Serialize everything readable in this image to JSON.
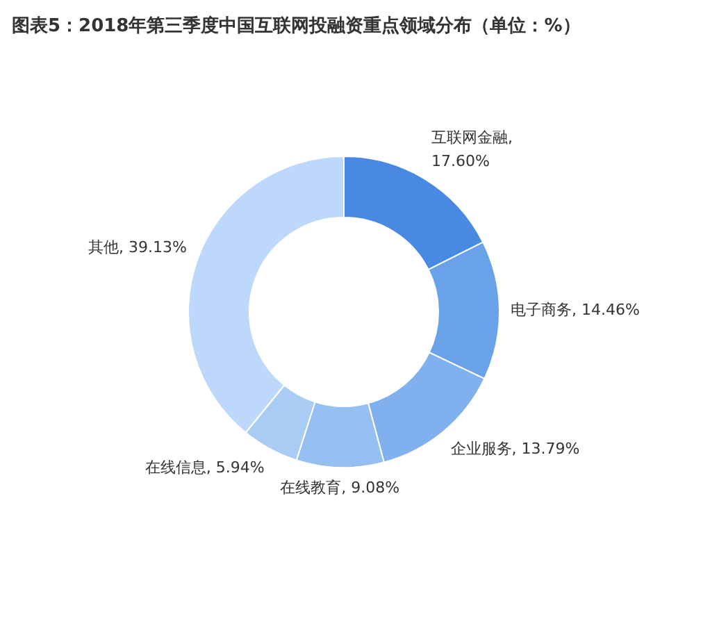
{
  "chart_data": {
    "type": "donut",
    "title": "图表5：2018年第三季度中国互联网投融资重点领域分布（单位：%）",
    "categories": [
      "互联网金融",
      "电子商务",
      "企业服务",
      "在线教育",
      "在线信息",
      "其他"
    ],
    "values": [
      17.6,
      14.46,
      13.79,
      9.08,
      5.94,
      39.13
    ],
    "value_labels": [
      ", 17.60%",
      ", 14.46%",
      ", 13.79%",
      ", 9.08%",
      ", 5.94%",
      ", 39.13%"
    ],
    "colors": [
      "#4a89e1",
      "#6aa2ea",
      "#80b0ee",
      "#95bef1",
      "#a9ccf5",
      "#bdd8fa"
    ]
  }
}
